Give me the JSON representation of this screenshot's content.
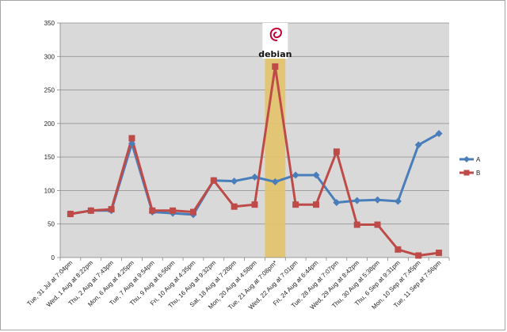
{
  "chart_data": {
    "type": "line",
    "title": "",
    "xlabel": "",
    "ylabel": "",
    "ylim": [
      0,
      350
    ],
    "yticks": [
      0,
      50,
      100,
      150,
      200,
      250,
      300,
      350
    ],
    "grid": "horizontal",
    "legend_position": "right",
    "categories": [
      "Tue, 31 Jul at 7:04pm",
      "Wed, 1 Aug at 8:22pm",
      "Thu, 2 Aug at 7:43pm",
      "Mon, 6 Aug at 4:25pm",
      "Tue, 7 Aug at 9:54pm",
      "Thu, 9 Aug at 6:56pm",
      "Fri, 10 Aug at 4:35pm",
      "Thu, 16 Aug at 9:32pm",
      "Sat, 18 Aug at 7:28pm",
      "Mon, 20 Aug at 4:58pm",
      "Tue, 21 Aug at 7:08pm*",
      "Wed, 22 Aug at 7:01pm",
      "Fri, 24 Aug at 6:44pm",
      "Tue, 28 Aug at 7:07pm",
      "Wed, 29 Aug at 8:42pm",
      "Thu, 30 Aug at 5:38pm",
      "Thu, 6 Sep at 9:31pm",
      "Mon, 10 Sep at 7:45pm",
      "Tue, 11 Sep at 7:56pm"
    ],
    "series": [
      {
        "name": "A",
        "color": "#4a7ebb",
        "marker": "diamond",
        "values": [
          65,
          70,
          70,
          170,
          68,
          66,
          64,
          115,
          114,
          120,
          113,
          123,
          123,
          82,
          85,
          86,
          84,
          168,
          185
        ]
      },
      {
        "name": "B",
        "color": "#be4b48",
        "marker": "square",
        "values": [
          65,
          70,
          72,
          178,
          70,
          70,
          68,
          115,
          76,
          79,
          285,
          79,
          79,
          158,
          49,
          49,
          12,
          3,
          7
        ]
      }
    ],
    "highlight": {
      "category": "Tue, 21 Aug at 7:08pm*",
      "color": "#e3c36c",
      "logo_text": "debian"
    }
  }
}
